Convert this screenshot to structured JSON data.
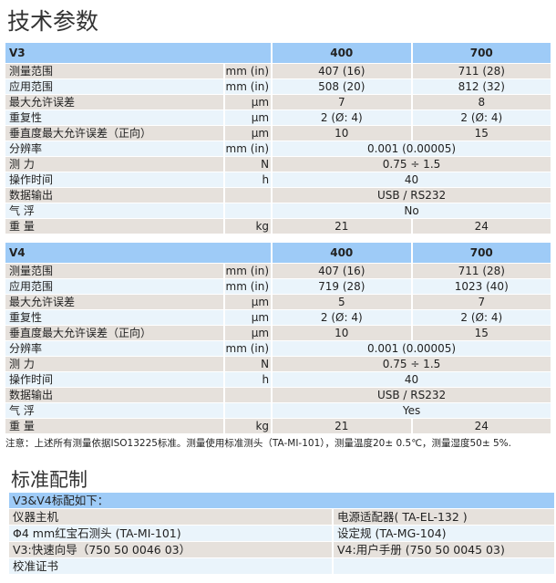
{
  "title": "技术参数",
  "v3": {
    "header": [
      "V3",
      "400",
      "700"
    ],
    "rows": [
      {
        "label": "测量范围",
        "unit": "mm (in)",
        "values": [
          "407 (16)",
          "711 (28)"
        ]
      },
      {
        "label": "应用范围",
        "unit": "mm (in)",
        "values": [
          "508 (20)",
          "812 (32)"
        ]
      },
      {
        "label": "最大允许误差",
        "unit": "µm",
        "values": [
          "7",
          "8"
        ]
      },
      {
        "label": "重复性",
        "unit": "µm",
        "values": [
          "2 (Ø: 4)",
          "2 (Ø: 4)"
        ]
      },
      {
        "label": "垂直度最大允许误差（正向）",
        "unit": "µm",
        "values": [
          "10",
          "15"
        ]
      },
      {
        "label": "分辨率",
        "unit": "mm (in)",
        "value": "0.001 (0.00005)"
      },
      {
        "label": "测 力",
        "unit": "N",
        "value": "0.75 ÷ 1.5"
      },
      {
        "label": "操作时间",
        "unit": "h",
        "value": "40"
      },
      {
        "label": "数据输出",
        "unit": "",
        "value": "USB / RS232"
      },
      {
        "label": "气 浮",
        "unit": "",
        "value": "No"
      },
      {
        "label": "重 量",
        "unit": "kg",
        "values": [
          "21",
          "24"
        ]
      }
    ]
  },
  "v4": {
    "header": [
      "V4",
      "400",
      "700"
    ],
    "rows": [
      {
        "label": "测量范围",
        "unit": "mm (in)",
        "values": [
          "407 (16)",
          "711 (28)"
        ]
      },
      {
        "label": "应用范围",
        "unit": "mm (in)",
        "values": [
          "719 (28)",
          "1023 (40)"
        ]
      },
      {
        "label": "最大允许误差",
        "unit": "µm",
        "values": [
          "5",
          "7"
        ]
      },
      {
        "label": "重复性",
        "unit": "µm",
        "values": [
          "2 (Ø: 4)",
          "2 (Ø: 4)"
        ]
      },
      {
        "label": "垂直度最大允许误差（正向）",
        "unit": "µm",
        "values": [
          "10",
          "15"
        ]
      },
      {
        "label": "分辨率",
        "unit": "mm (in)",
        "value": "0.001 (0.00005)"
      },
      {
        "label": "测 力",
        "unit": "N",
        "value": "0.75 ÷ 1.5"
      },
      {
        "label": "操作时间",
        "unit": "h",
        "value": "40"
      },
      {
        "label": "数据输出",
        "unit": "",
        "value": "USB / RS232"
      },
      {
        "label": "气 浮",
        "unit": "",
        "value": "Yes"
      },
      {
        "label": "重 量",
        "unit": "kg",
        "values": [
          "21",
          "24"
        ]
      }
    ]
  },
  "note": "注意：上述所有测量依据ISO13225标准。测量使用标准测头（TA-MI-101），测量温度20± 0.5℃，测量湿度50± 5%.",
  "config": {
    "title": "标准配制",
    "header": "V3&V4标配如下：",
    "rows": [
      [
        "仪器主机",
        "电源适配器( TA-EL-132 )"
      ],
      [
        "Φ4 mm红宝石测头 (TA-MI-101)",
        "设定规 (TA-MG-104)"
      ],
      [
        "V3:快速向导（750 50 0046 03）",
        "V4:用户手册 (750 50 0045 03)"
      ],
      [
        "校准证书",
        ""
      ]
    ]
  },
  "colors": {
    "header": "#9ecbf7",
    "row_gray": "#e6e1dc",
    "row_blue": "#eaf4fb"
  }
}
